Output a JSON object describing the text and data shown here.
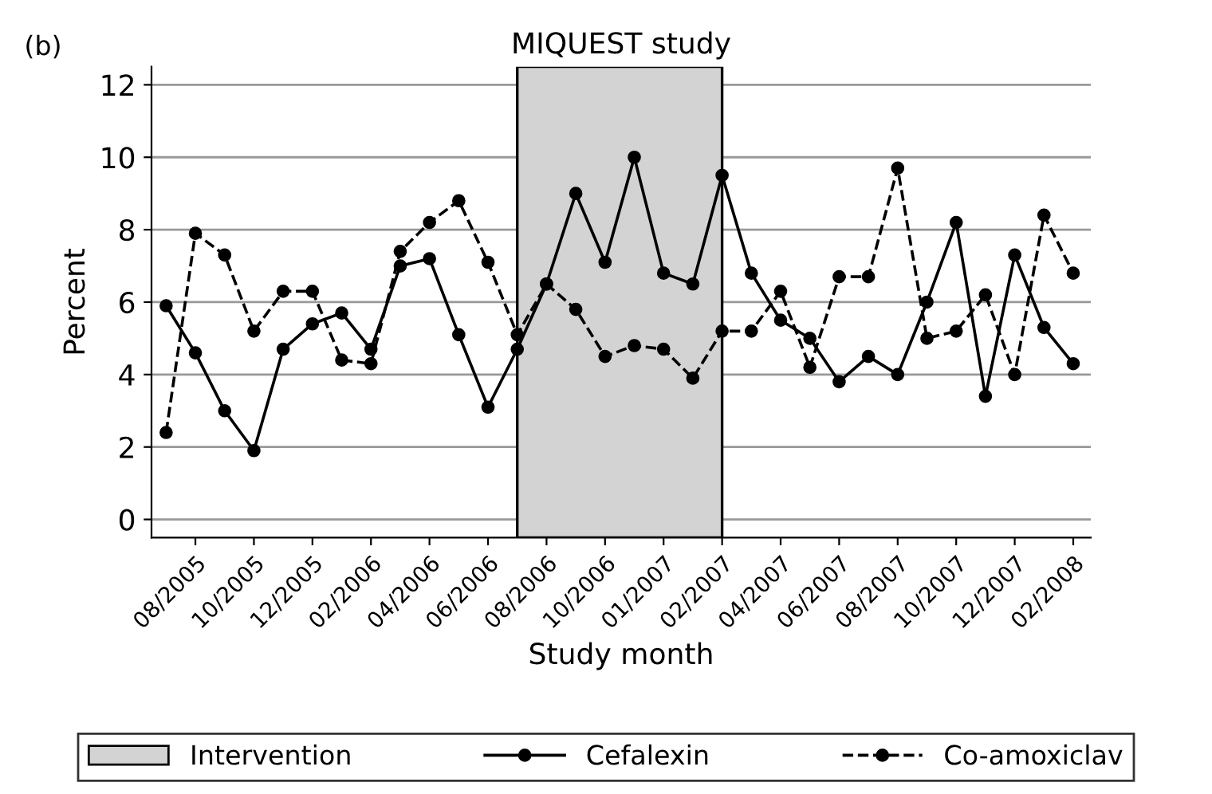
{
  "chart_data": {
    "type": "line",
    "title": "MIQUEST study",
    "xlabel": "Study month",
    "ylabel": "Percent",
    "annotations": [
      "(b)",
      "Intervention"
    ],
    "categories": [
      null,
      "08/2005",
      null,
      "10/2005",
      null,
      "12/2005",
      null,
      "02/2006",
      null,
      "04/2006",
      null,
      "06/2006",
      null,
      "08/2006",
      null,
      "10/2006",
      null,
      "01/2007",
      null,
      "02/2007",
      null,
      "04/2007",
      null,
      "06/2007",
      null,
      "08/2007",
      null,
      "10/2007",
      null,
      "12/2007",
      null,
      "02/2008"
    ],
    "series": [
      {
        "name": "Cefalexin",
        "color": "#000000",
        "line_style": "solid",
        "values": [
          5.9,
          4.6,
          3.0,
          1.9,
          4.7,
          5.4,
          5.7,
          4.7,
          7.0,
          7.2,
          5.1,
          3.1,
          4.7,
          6.5,
          9.0,
          7.1,
          10.0,
          6.8,
          6.5,
          9.5,
          6.8,
          5.5,
          5.0,
          3.8,
          4.5,
          4.0,
          6.0,
          8.2,
          3.4,
          7.3,
          5.3,
          4.3
        ]
      },
      {
        "name": "Co-amoxiclav",
        "color": "#000000",
        "line_style": "dashed",
        "values": [
          2.4,
          7.9,
          7.3,
          5.2,
          6.3,
          6.3,
          4.4,
          4.3,
          7.4,
          8.2,
          8.8,
          7.1,
          5.1,
          6.5,
          5.8,
          4.5,
          4.8,
          4.7,
          3.9,
          5.2,
          5.2,
          6.3,
          4.2,
          6.7,
          6.7,
          9.7,
          5.0,
          5.2,
          6.2,
          4.0,
          8.4,
          6.8
        ]
      }
    ],
    "ylim": [
      -0.5,
      12.5
    ],
    "yticks": [
      0,
      2,
      4,
      6,
      8,
      10,
      12
    ],
    "grid": "y",
    "legend": "bottom",
    "marker": "circle"
  }
}
